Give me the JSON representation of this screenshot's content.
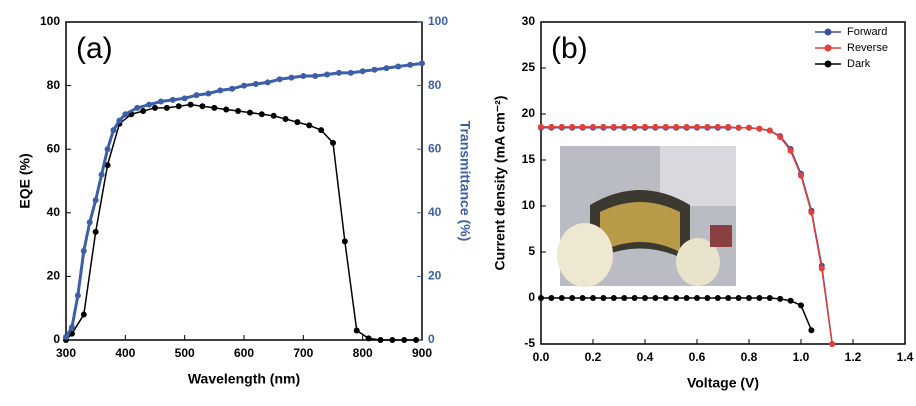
{
  "chart_data": [
    {
      "type": "line",
      "label": "(a)",
      "xlabel": "Wavelength (nm)",
      "ylabel": "EQE (%)",
      "y2label": "Transmittance (%)",
      "xlim": [
        300,
        900
      ],
      "xticks": [
        300,
        400,
        500,
        600,
        700,
        800,
        900
      ],
      "ylim": [
        0,
        100
      ],
      "yticks": [
        0,
        20,
        40,
        60,
        80,
        100
      ],
      "y2lim": [
        0,
        100
      ],
      "y2ticks": [
        0,
        20,
        40,
        60,
        80,
        100
      ],
      "y2color": "#3d5fa8",
      "series": [
        {
          "color": "#000000",
          "x": [
            300,
            310,
            330,
            350,
            370,
            390,
            410,
            430,
            450,
            470,
            490,
            510,
            530,
            550,
            570,
            590,
            610,
            630,
            650,
            670,
            690,
            710,
            730,
            750,
            770,
            790,
            810,
            830,
            850,
            870,
            890
          ],
          "values": [
            0,
            2,
            8,
            34,
            55,
            68,
            71,
            72,
            73,
            73,
            73.5,
            74,
            73.5,
            73,
            72.5,
            72,
            71.5,
            71,
            70.5,
            69.5,
            68.5,
            67.5,
            66,
            62,
            31,
            3,
            0.5,
            0,
            0,
            0,
            0
          ]
        },
        {
          "color": "#3d5fa8",
          "axis": "y2",
          "x": [
            300,
            310,
            320,
            330,
            340,
            350,
            360,
            370,
            380,
            390,
            400,
            420,
            440,
            460,
            480,
            500,
            520,
            540,
            560,
            580,
            600,
            620,
            640,
            660,
            680,
            700,
            720,
            740,
            760,
            780,
            800,
            820,
            840,
            860,
            880,
            900
          ],
          "values": [
            1,
            4,
            14,
            28,
            37,
            44,
            52,
            60,
            66,
            69,
            71,
            73,
            74,
            75,
            75.5,
            76,
            77,
            77.5,
            78.5,
            79,
            80,
            80.5,
            81,
            82,
            82.5,
            83,
            83,
            83.5,
            84,
            84,
            84.5,
            85,
            85.5,
            86,
            86.5,
            87
          ]
        }
      ]
    },
    {
      "type": "line",
      "label": "(b)",
      "xlabel": "Voltage (V)",
      "ylabel": "Current density (mA cm⁻²)",
      "xlim": [
        0,
        1.4
      ],
      "xticks": [
        {
          "value": 0,
          "label": "0.0"
        },
        0.2,
        0.4,
        0.6,
        0.8,
        {
          "value": 1,
          "label": "1.0"
        },
        1.2,
        1.4
      ],
      "ylim": [
        -5,
        30
      ],
      "yticks": [
        -5,
        0,
        5,
        10,
        15,
        20,
        25,
        30
      ],
      "legend": "upper right",
      "series": [
        {
          "name": "Forward",
          "color": "#3d4fa0",
          "x": [
            0,
            0.04,
            0.08,
            0.12,
            0.16,
            0.2,
            0.24,
            0.28,
            0.32,
            0.36,
            0.4,
            0.44,
            0.48,
            0.52,
            0.56,
            0.6,
            0.64,
            0.68,
            0.72,
            0.76,
            0.8,
            0.84,
            0.88,
            0.92,
            0.96,
            1,
            1.04,
            1.08,
            1.12
          ],
          "values": [
            18.5,
            18.5,
            18.5,
            18.5,
            18.5,
            18.5,
            18.5,
            18.5,
            18.5,
            18.5,
            18.5,
            18.5,
            18.5,
            18.5,
            18.5,
            18.5,
            18.5,
            18.5,
            18.5,
            18.5,
            18.5,
            18.4,
            18.2,
            17.6,
            16.2,
            13.5,
            9.5,
            3.5,
            -5
          ]
        },
        {
          "name": "Reverse",
          "color": "#e0403a",
          "x": [
            0,
            0.04,
            0.08,
            0.12,
            0.16,
            0.2,
            0.24,
            0.28,
            0.32,
            0.36,
            0.4,
            0.44,
            0.48,
            0.52,
            0.56,
            0.6,
            0.64,
            0.68,
            0.72,
            0.76,
            0.8,
            0.84,
            0.88,
            0.92,
            0.96,
            1,
            1.04,
            1.08,
            1.12
          ],
          "values": [
            18.6,
            18.6,
            18.6,
            18.6,
            18.6,
            18.6,
            18.6,
            18.6,
            18.6,
            18.6,
            18.6,
            18.6,
            18.6,
            18.6,
            18.6,
            18.6,
            18.6,
            18.6,
            18.6,
            18.5,
            18.5,
            18.4,
            18.2,
            17.5,
            16,
            13.3,
            9.3,
            3.2,
            -5
          ]
        },
        {
          "name": "Dark",
          "color": "#000000",
          "x": [
            0,
            0.04,
            0.08,
            0.12,
            0.16,
            0.2,
            0.24,
            0.28,
            0.32,
            0.36,
            0.4,
            0.44,
            0.48,
            0.52,
            0.56,
            0.6,
            0.64,
            0.68,
            0.72,
            0.76,
            0.8,
            0.84,
            0.88,
            0.92,
            0.96,
            1,
            1.04
          ],
          "values": [
            0,
            0,
            0,
            0,
            0,
            0,
            0,
            0,
            0,
            0,
            0,
            0,
            0,
            0,
            0,
            0,
            0,
            0,
            0,
            0,
            0,
            0,
            0,
            -0.1,
            -0.3,
            -0.8,
            -3.5
          ]
        }
      ]
    }
  ]
}
